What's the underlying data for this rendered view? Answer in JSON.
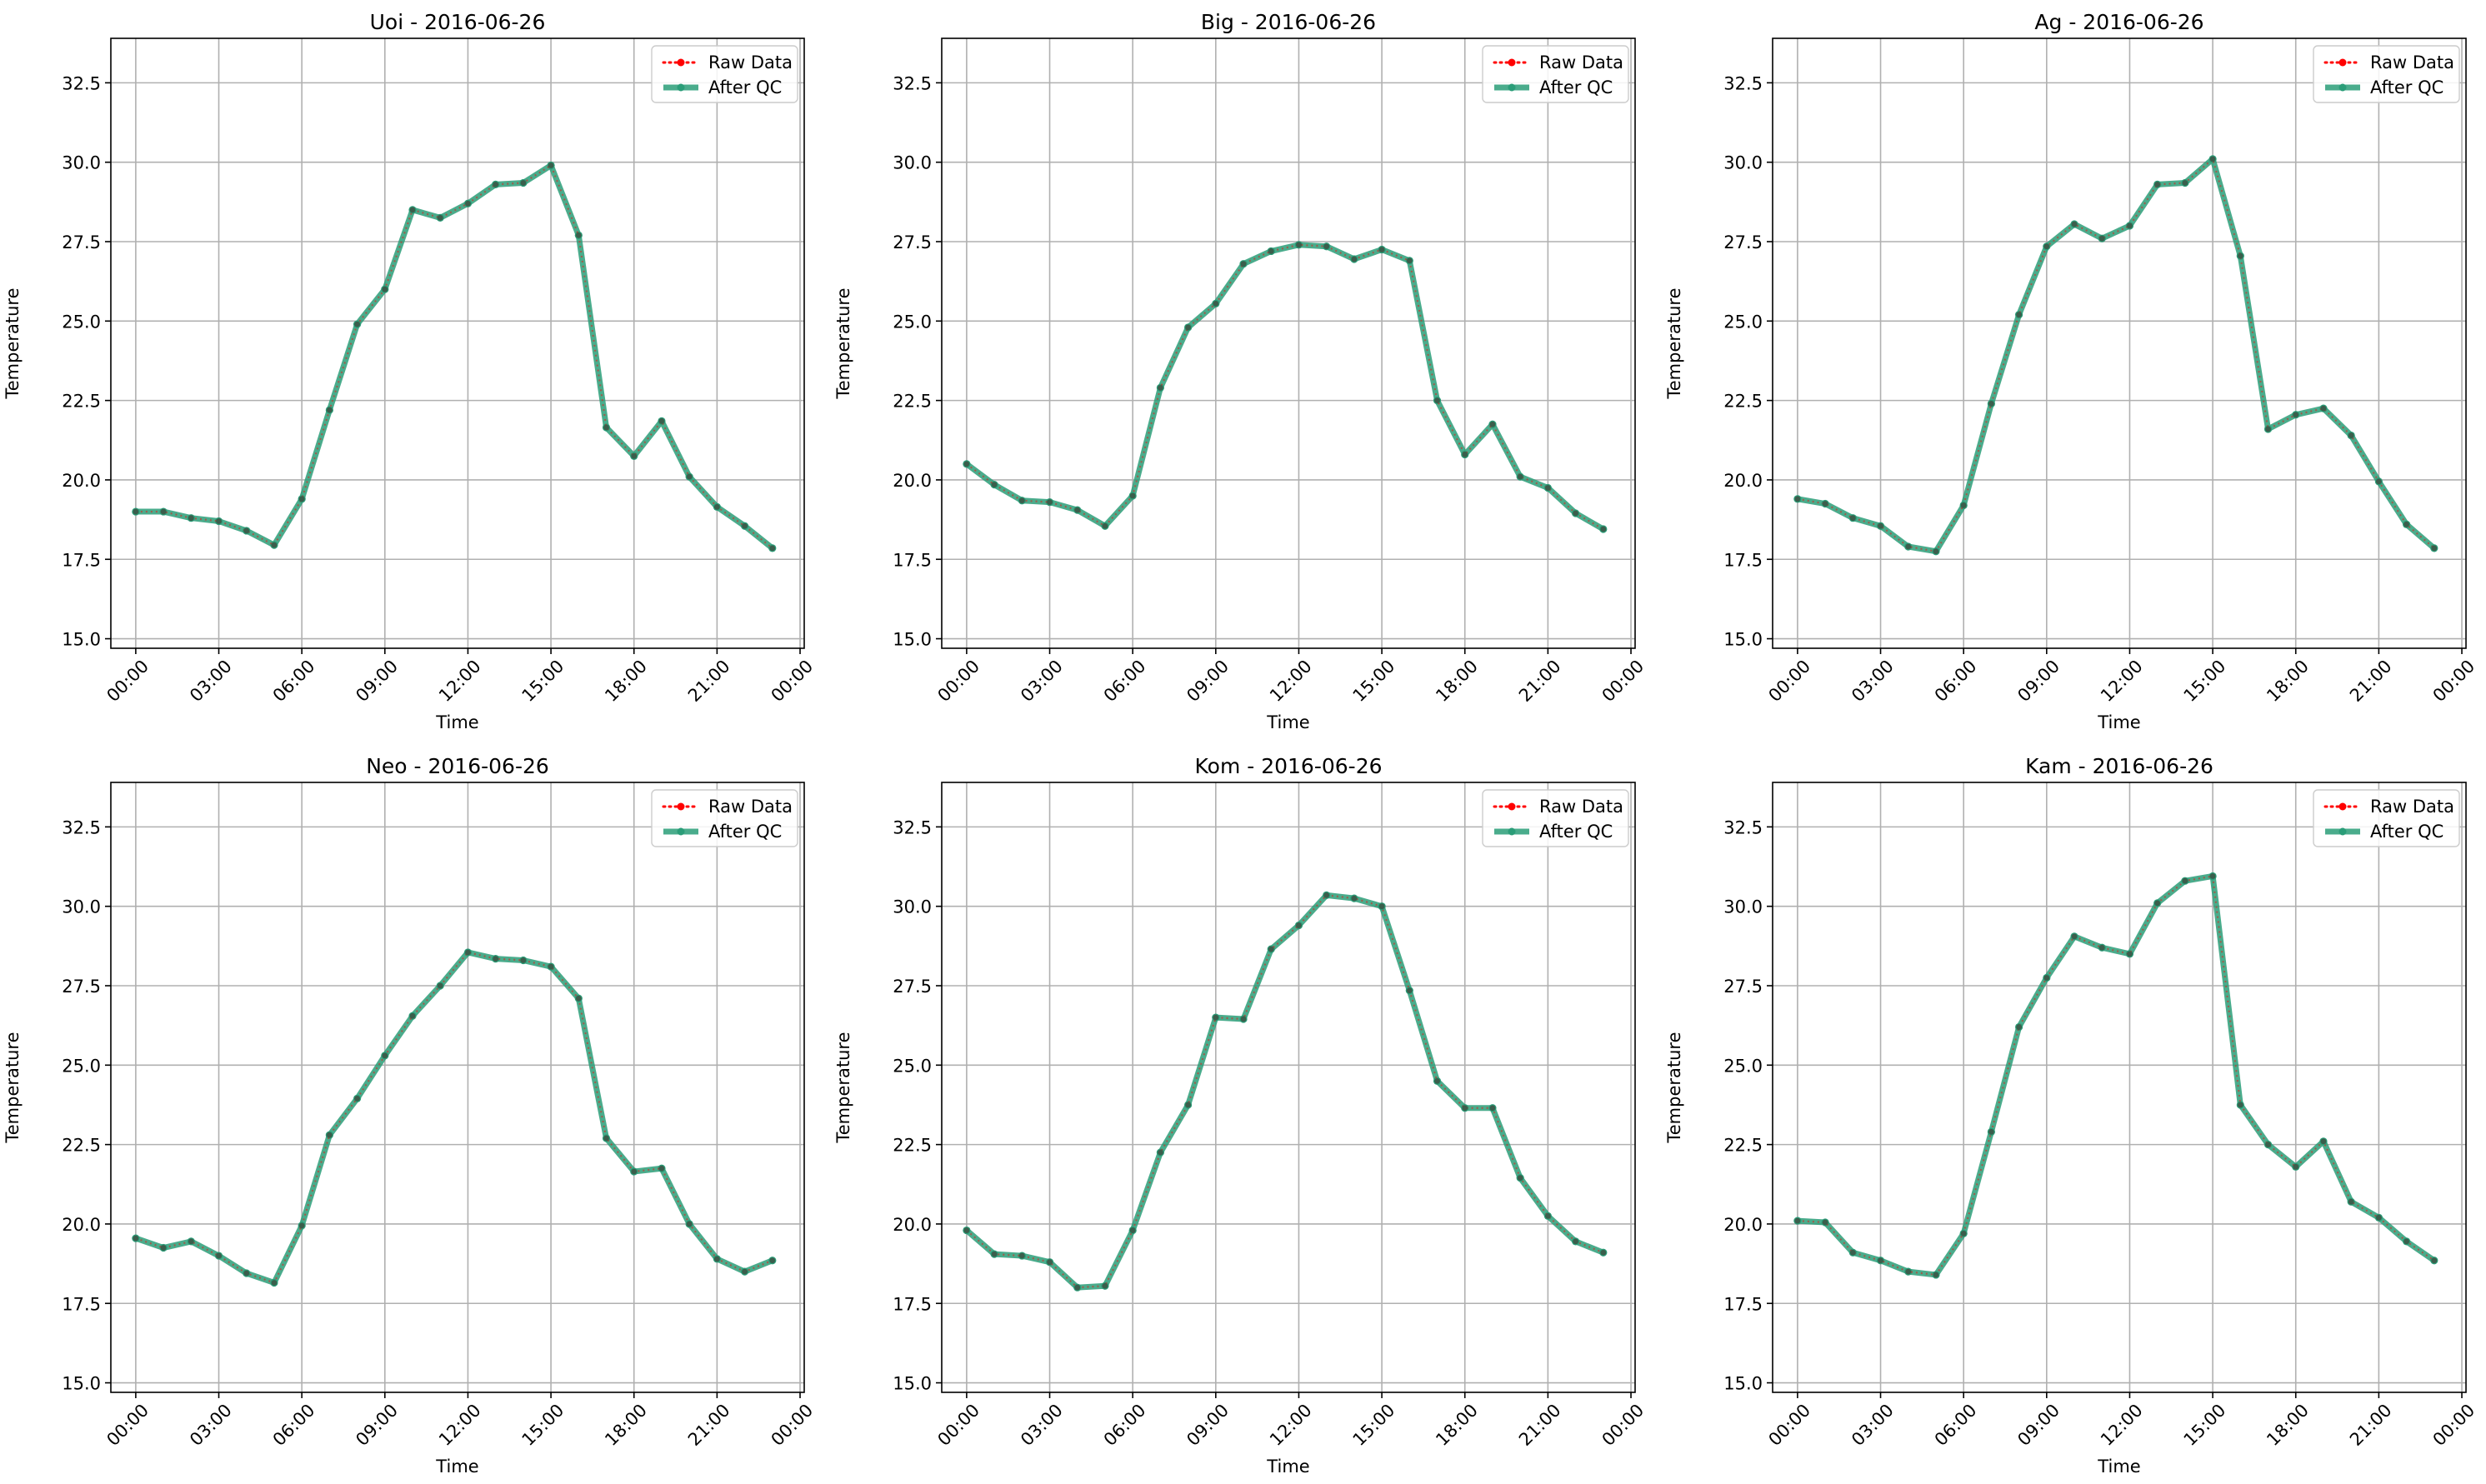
{
  "chart_data": [
    {
      "type": "line",
      "title": "Uoi - 2016-06-26",
      "xlabel": "Time",
      "ylabel": "Temperature",
      "ylim": [
        14.7,
        33.9
      ],
      "yticks": [
        15.0,
        17.5,
        20.0,
        22.5,
        25.0,
        27.5,
        30.0,
        32.5
      ],
      "xlim": [
        -0.9,
        24.15
      ],
      "xtick_hours": [
        0,
        3,
        6,
        9,
        12,
        15,
        18,
        21,
        24
      ],
      "xtick_labels": [
        "00:00",
        "03:00",
        "06:00",
        "09:00",
        "12:00",
        "15:00",
        "18:00",
        "21:00",
        "00:00"
      ],
      "grid": true,
      "legend_position": "top-right",
      "x": [
        "00:00",
        "01:00",
        "02:00",
        "03:00",
        "04:00",
        "05:00",
        "06:00",
        "07:00",
        "08:00",
        "09:00",
        "10:00",
        "11:00",
        "12:00",
        "13:00",
        "14:00",
        "15:00",
        "16:00",
        "17:00",
        "18:00",
        "19:00",
        "20:00",
        "21:00",
        "22:00",
        "23:00"
      ],
      "series": [
        {
          "name": "Raw Data",
          "color": "#ff0000",
          "values": [
            19.0,
            19.0,
            18.8,
            18.7,
            18.4,
            17.95,
            19.4,
            22.2,
            24.9,
            26.0,
            28.5,
            28.25,
            28.7,
            29.3,
            29.35,
            29.9,
            27.7,
            21.65,
            20.75,
            21.85,
            20.1,
            19.15,
            18.55,
            17.85
          ]
        },
        {
          "name": "After QC",
          "color": "#2a9d78",
          "values": [
            19.0,
            19.0,
            18.8,
            18.7,
            18.4,
            17.95,
            19.4,
            22.2,
            24.9,
            26.0,
            28.5,
            28.25,
            28.7,
            29.3,
            29.35,
            29.9,
            27.7,
            21.65,
            20.75,
            21.85,
            20.1,
            19.15,
            18.55,
            17.85
          ]
        }
      ]
    },
    {
      "type": "line",
      "title": "Big - 2016-06-26",
      "xlabel": "Time",
      "ylabel": "Temperature",
      "ylim": [
        14.7,
        33.9
      ],
      "yticks": [
        15.0,
        17.5,
        20.0,
        22.5,
        25.0,
        27.5,
        30.0,
        32.5
      ],
      "xlim": [
        -0.9,
        24.15
      ],
      "xtick_hours": [
        0,
        3,
        6,
        9,
        12,
        15,
        18,
        21,
        24
      ],
      "xtick_labels": [
        "00:00",
        "03:00",
        "06:00",
        "09:00",
        "12:00",
        "15:00",
        "18:00",
        "21:00",
        "00:00"
      ],
      "grid": true,
      "legend_position": "top-right",
      "x": [
        "00:00",
        "01:00",
        "02:00",
        "03:00",
        "04:00",
        "05:00",
        "06:00",
        "07:00",
        "08:00",
        "09:00",
        "10:00",
        "11:00",
        "12:00",
        "13:00",
        "14:00",
        "15:00",
        "16:00",
        "17:00",
        "18:00",
        "19:00",
        "20:00",
        "21:00",
        "22:00",
        "23:00"
      ],
      "series": [
        {
          "name": "Raw Data",
          "color": "#ff0000",
          "values": [
            20.5,
            19.85,
            19.35,
            19.3,
            19.05,
            18.55,
            19.5,
            22.9,
            24.8,
            25.55,
            26.8,
            27.2,
            27.4,
            27.35,
            26.95,
            27.25,
            26.9,
            22.5,
            20.8,
            21.75,
            20.1,
            19.75,
            18.95,
            18.45
          ]
        },
        {
          "name": "After QC",
          "color": "#2a9d78",
          "values": [
            20.5,
            19.85,
            19.35,
            19.3,
            19.05,
            18.55,
            19.5,
            22.9,
            24.8,
            25.55,
            26.8,
            27.2,
            27.4,
            27.35,
            26.95,
            27.25,
            26.9,
            22.5,
            20.8,
            21.75,
            20.1,
            19.75,
            18.95,
            18.45
          ]
        }
      ]
    },
    {
      "type": "line",
      "title": "Ag - 2016-06-26",
      "xlabel": "Time",
      "ylabel": "Temperature",
      "ylim": [
        14.7,
        33.9
      ],
      "yticks": [
        15.0,
        17.5,
        20.0,
        22.5,
        25.0,
        27.5,
        30.0,
        32.5
      ],
      "xlim": [
        -0.9,
        24.15
      ],
      "xtick_hours": [
        0,
        3,
        6,
        9,
        12,
        15,
        18,
        21,
        24
      ],
      "xtick_labels": [
        "00:00",
        "03:00",
        "06:00",
        "09:00",
        "12:00",
        "15:00",
        "18:00",
        "21:00",
        "00:00"
      ],
      "grid": true,
      "legend_position": "top-right",
      "x": [
        "00:00",
        "01:00",
        "02:00",
        "03:00",
        "04:00",
        "05:00",
        "06:00",
        "07:00",
        "08:00",
        "09:00",
        "10:00",
        "11:00",
        "12:00",
        "13:00",
        "14:00",
        "15:00",
        "16:00",
        "17:00",
        "18:00",
        "19:00",
        "20:00",
        "21:00",
        "22:00",
        "23:00"
      ],
      "series": [
        {
          "name": "Raw Data",
          "color": "#ff0000",
          "values": [
            19.4,
            19.25,
            18.8,
            18.55,
            17.9,
            17.75,
            19.2,
            22.4,
            25.2,
            27.35,
            28.05,
            27.6,
            28.0,
            29.3,
            29.35,
            30.1,
            27.05,
            21.6,
            22.05,
            22.25,
            21.4,
            19.95,
            18.6,
            17.85
          ]
        },
        {
          "name": "After QC",
          "color": "#2a9d78",
          "values": [
            19.4,
            19.25,
            18.8,
            18.55,
            17.9,
            17.75,
            19.2,
            22.4,
            25.2,
            27.35,
            28.05,
            27.6,
            28.0,
            29.3,
            29.35,
            30.1,
            27.05,
            21.6,
            22.05,
            22.25,
            21.4,
            19.95,
            18.6,
            17.85
          ]
        }
      ]
    },
    {
      "type": "line",
      "title": "Neo - 2016-06-26",
      "xlabel": "Time",
      "ylabel": "Temperature",
      "ylim": [
        14.7,
        33.9
      ],
      "yticks": [
        15.0,
        17.5,
        20.0,
        22.5,
        25.0,
        27.5,
        30.0,
        32.5
      ],
      "xlim": [
        -0.9,
        24.15
      ],
      "xtick_hours": [
        0,
        3,
        6,
        9,
        12,
        15,
        18,
        21,
        24
      ],
      "xtick_labels": [
        "00:00",
        "03:00",
        "06:00",
        "09:00",
        "12:00",
        "15:00",
        "18:00",
        "21:00",
        "00:00"
      ],
      "grid": true,
      "legend_position": "top-right",
      "x": [
        "00:00",
        "01:00",
        "02:00",
        "03:00",
        "04:00",
        "05:00",
        "06:00",
        "07:00",
        "08:00",
        "09:00",
        "10:00",
        "11:00",
        "12:00",
        "13:00",
        "14:00",
        "15:00",
        "16:00",
        "17:00",
        "18:00",
        "19:00",
        "20:00",
        "21:00",
        "22:00",
        "23:00"
      ],
      "series": [
        {
          "name": "Raw Data",
          "color": "#ff0000",
          "values": [
            19.55,
            19.25,
            19.45,
            19.0,
            18.45,
            18.15,
            19.95,
            22.8,
            23.95,
            25.3,
            26.55,
            27.5,
            28.55,
            28.35,
            28.3,
            28.1,
            27.1,
            22.7,
            21.65,
            21.75,
            20.0,
            18.9,
            18.5,
            18.85
          ]
        },
        {
          "name": "After QC",
          "color": "#2a9d78",
          "values": [
            19.55,
            19.25,
            19.45,
            19.0,
            18.45,
            18.15,
            19.95,
            22.8,
            23.95,
            25.3,
            26.55,
            27.5,
            28.55,
            28.35,
            28.3,
            28.1,
            27.1,
            22.7,
            21.65,
            21.75,
            20.0,
            18.9,
            18.5,
            18.85
          ]
        }
      ]
    },
    {
      "type": "line",
      "title": "Kom - 2016-06-26",
      "xlabel": "Time",
      "ylabel": "Temperature",
      "ylim": [
        14.7,
        33.9
      ],
      "yticks": [
        15.0,
        17.5,
        20.0,
        22.5,
        25.0,
        27.5,
        30.0,
        32.5
      ],
      "xlim": [
        -0.9,
        24.15
      ],
      "xtick_hours": [
        0,
        3,
        6,
        9,
        12,
        15,
        18,
        21,
        24
      ],
      "xtick_labels": [
        "00:00",
        "03:00",
        "06:00",
        "09:00",
        "12:00",
        "15:00",
        "18:00",
        "21:00",
        "00:00"
      ],
      "grid": true,
      "legend_position": "top-right",
      "x": [
        "00:00",
        "01:00",
        "02:00",
        "03:00",
        "04:00",
        "05:00",
        "06:00",
        "07:00",
        "08:00",
        "09:00",
        "10:00",
        "11:00",
        "12:00",
        "13:00",
        "14:00",
        "15:00",
        "16:00",
        "17:00",
        "18:00",
        "19:00",
        "20:00",
        "21:00",
        "22:00",
        "23:00"
      ],
      "series": [
        {
          "name": "Raw Data",
          "color": "#ff0000",
          "values": [
            19.8,
            19.05,
            19.0,
            18.8,
            18.0,
            18.05,
            19.8,
            22.25,
            23.75,
            26.5,
            26.45,
            28.65,
            29.4,
            30.35,
            30.25,
            30.0,
            27.35,
            24.5,
            23.65,
            23.65,
            21.45,
            20.25,
            19.45,
            19.1
          ]
        },
        {
          "name": "After QC",
          "color": "#2a9d78",
          "values": [
            19.8,
            19.05,
            19.0,
            18.8,
            18.0,
            18.05,
            19.8,
            22.25,
            23.75,
            26.5,
            26.45,
            28.65,
            29.4,
            30.35,
            30.25,
            30.0,
            27.35,
            24.5,
            23.65,
            23.65,
            21.45,
            20.25,
            19.45,
            19.1
          ]
        }
      ]
    },
    {
      "type": "line",
      "title": "Kam - 2016-06-26",
      "xlabel": "Time",
      "ylabel": "Temperature",
      "ylim": [
        14.7,
        33.9
      ],
      "yticks": [
        15.0,
        17.5,
        20.0,
        22.5,
        25.0,
        27.5,
        30.0,
        32.5
      ],
      "xlim": [
        -0.9,
        24.15
      ],
      "xtick_hours": [
        0,
        3,
        6,
        9,
        12,
        15,
        18,
        21,
        24
      ],
      "xtick_labels": [
        "00:00",
        "03:00",
        "06:00",
        "09:00",
        "12:00",
        "15:00",
        "18:00",
        "21:00",
        "00:00"
      ],
      "grid": true,
      "legend_position": "top-right",
      "x": [
        "00:00",
        "01:00",
        "02:00",
        "03:00",
        "04:00",
        "05:00",
        "06:00",
        "07:00",
        "08:00",
        "09:00",
        "10:00",
        "11:00",
        "12:00",
        "13:00",
        "14:00",
        "15:00",
        "16:00",
        "17:00",
        "18:00",
        "19:00",
        "20:00",
        "21:00",
        "22:00",
        "23:00"
      ],
      "series": [
        {
          "name": "Raw Data",
          "color": "#ff0000",
          "values": [
            20.1,
            20.05,
            19.1,
            18.85,
            18.5,
            18.4,
            19.7,
            22.9,
            26.2,
            27.75,
            29.05,
            28.7,
            28.5,
            30.1,
            30.8,
            30.95,
            23.75,
            22.5,
            21.8,
            22.6,
            20.7,
            20.2,
            19.45,
            18.85
          ]
        },
        {
          "name": "After QC",
          "color": "#2a9d78",
          "values": [
            20.1,
            20.05,
            19.1,
            18.85,
            18.5,
            18.4,
            19.7,
            22.9,
            26.2,
            27.75,
            29.05,
            28.7,
            28.5,
            30.1,
            30.8,
            30.95,
            23.75,
            22.5,
            21.8,
            22.6,
            20.7,
            20.2,
            19.45,
            18.85
          ]
        }
      ]
    }
  ]
}
